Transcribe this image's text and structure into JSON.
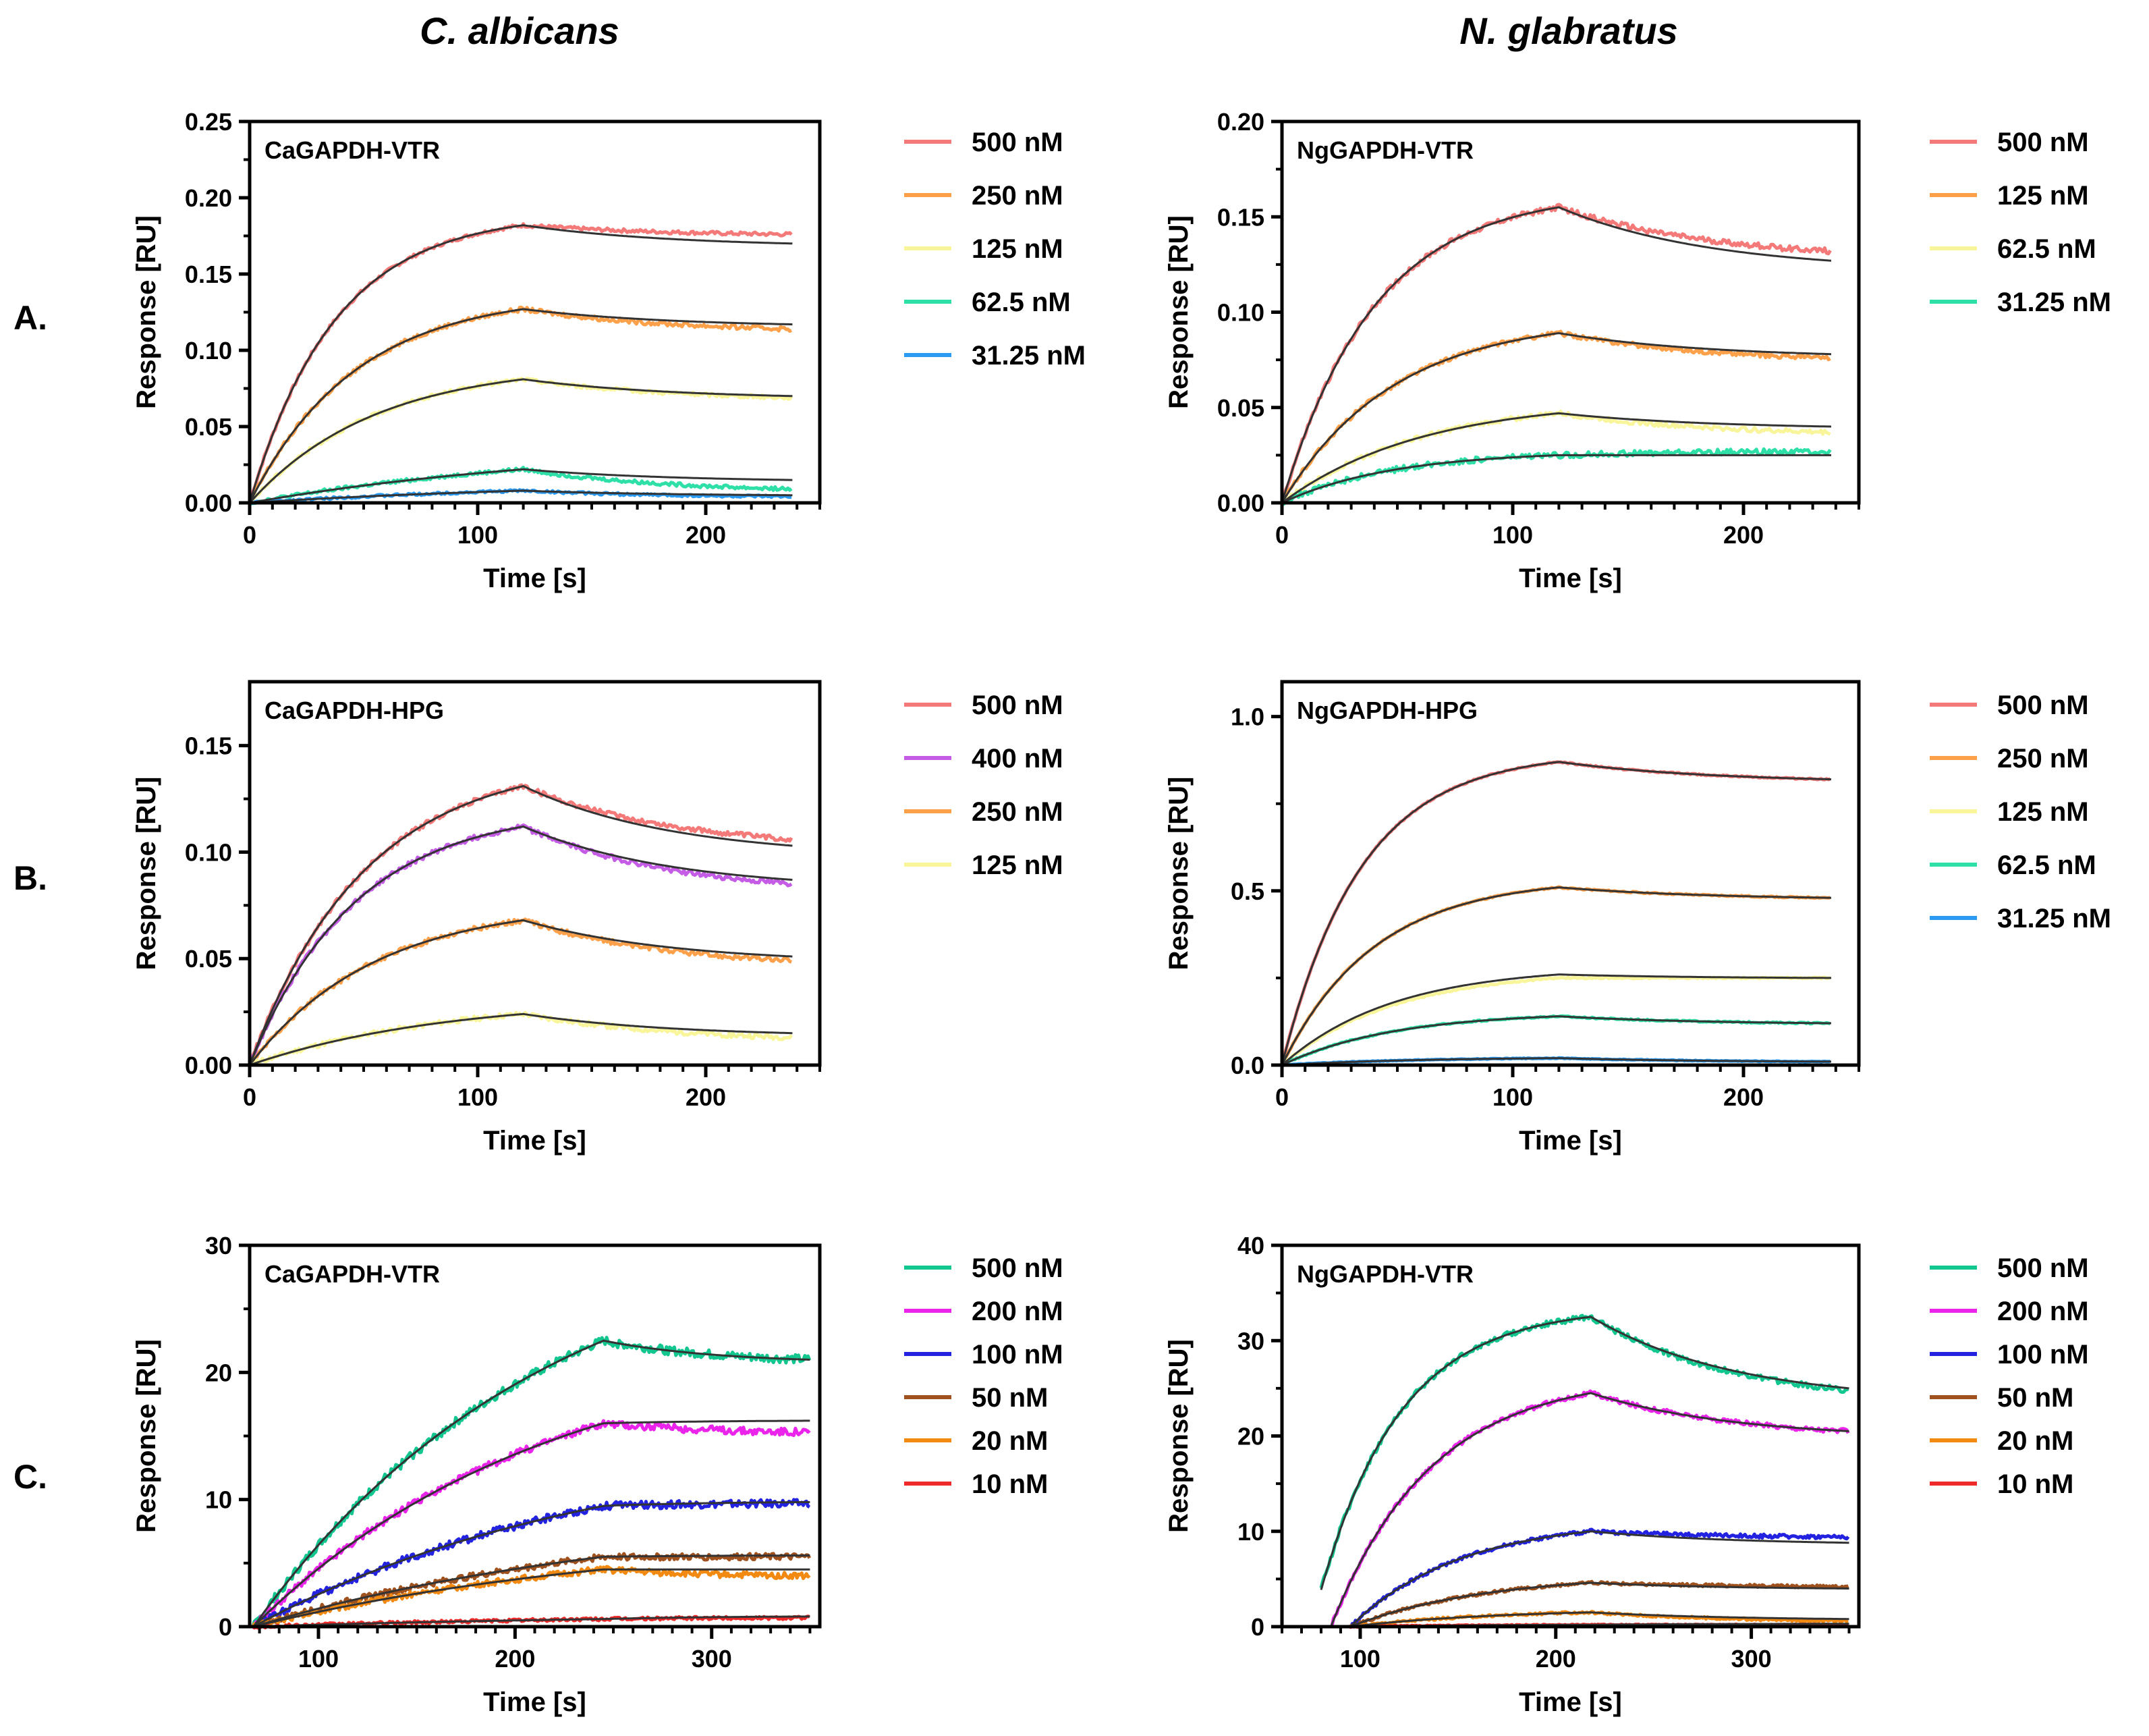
{
  "figure": {
    "columns": [
      "C. albicans",
      "N. glabratus"
    ],
    "rows": [
      "A.",
      "B.",
      "C."
    ]
  },
  "colors": {
    "red": "#f47a7a",
    "orange": "#fca04a",
    "yellow": "#f8f59a",
    "teal": "#2ee0a8",
    "blue": "#2a9af2",
    "purple": "#c45ce6",
    "fit": "#333333",
    "c_teal": "#12c690",
    "c_magenta": "#ea24ea",
    "c_blue": "#2222e0",
    "c_brown": "#a0521e",
    "c_orange": "#f28a12",
    "c_red": "#ee2a2a"
  },
  "chart_data": [
    {
      "id": "A-left",
      "type": "line",
      "title": "CaGAPDH-VTR",
      "xlabel": "Time [s]",
      "ylabel": "Response [RU]",
      "xlim": [
        0,
        250
      ],
      "ylim": [
        0,
        0.25
      ],
      "xticks": [
        0,
        100,
        200
      ],
      "xtick_labels": [
        "0",
        "100",
        "200"
      ],
      "yticks": [
        0,
        0.05,
        0.1,
        0.15,
        0.2,
        0.25
      ],
      "ytick_labels": [
        "0.00",
        "0.05",
        "0.10",
        "0.15",
        "0.20",
        "0.25"
      ],
      "model": {
        "t0": 0,
        "t_switch": 120,
        "t_end": 238
      },
      "series": [
        {
          "name": "500 nM",
          "color": "#f47a7a",
          "peak": 0.182,
          "end": 0.176,
          "fit_end": 0.17,
          "k": 3.2,
          "noise": 0.0012
        },
        {
          "name": "250 nM",
          "color": "#fca04a",
          "peak": 0.127,
          "end": 0.114,
          "fit_end": 0.117,
          "k": 2.6,
          "noise": 0.0015
        },
        {
          "name": "125 nM",
          "color": "#f8f59a",
          "peak": 0.081,
          "end": 0.069,
          "fit_end": 0.07,
          "k": 2.2,
          "noise": 0.0012
        },
        {
          "name": "62.5 nM",
          "color": "#2ee0a8",
          "peak": 0.022,
          "end": 0.009,
          "fit_end": 0.015,
          "k": 0.8,
          "noise": 0.0012
        },
        {
          "name": "31.25 nM",
          "color": "#2a9af2",
          "peak": 0.008,
          "end": 0.004,
          "fit_end": 0.005,
          "k": 0.8,
          "noise": 0.0008
        }
      ]
    },
    {
      "id": "A-right",
      "type": "line",
      "title": "NgGAPDH-VTR",
      "xlabel": "Time [s]",
      "ylabel": "Response [RU]",
      "xlim": [
        0,
        250
      ],
      "ylim": [
        0,
        0.2
      ],
      "xticks": [
        0,
        100,
        200
      ],
      "xtick_labels": [
        "0",
        "100",
        "200"
      ],
      "yticks": [
        0,
        0.05,
        0.1,
        0.15,
        0.2
      ],
      "ytick_labels": [
        "0.00",
        "0.05",
        "0.10",
        "0.15",
        "0.20"
      ],
      "model": {
        "t0": 0,
        "t_switch": 120,
        "t_end": 238
      },
      "series": [
        {
          "name": "500 nM",
          "color": "#f47a7a",
          "peak": 0.155,
          "end": 0.132,
          "fit_end": 0.127,
          "k": 3.0,
          "noise": 0.0015
        },
        {
          "name": "125 nM",
          "color": "#fca04a",
          "peak": 0.089,
          "end": 0.076,
          "fit_end": 0.078,
          "k": 2.5,
          "noise": 0.0012
        },
        {
          "name": "62.5 nM",
          "color": "#f8f59a",
          "peak": 0.047,
          "end": 0.037,
          "fit_end": 0.04,
          "k": 2.0,
          "noise": 0.0012
        },
        {
          "name": "31.25 nM",
          "color": "#2ee0a8",
          "peak": 0.025,
          "end": 0.027,
          "fit_end": 0.025,
          "k": 2.5,
          "noise": 0.0015
        }
      ]
    },
    {
      "id": "B-left",
      "type": "line",
      "title": "CaGAPDH-HPG",
      "xlabel": "Time [s]",
      "ylabel": "Response [RU]",
      "xlim": [
        0,
        250
      ],
      "ylim": [
        0,
        0.18
      ],
      "xticks": [
        0,
        100,
        200
      ],
      "xtick_labels": [
        "0",
        "100",
        "200"
      ],
      "yticks": [
        0,
        0.05,
        0.1,
        0.15
      ],
      "ytick_labels": [
        "0.00",
        "0.05",
        "0.10",
        "0.15"
      ],
      "model": {
        "t0": 0,
        "t_switch": 120,
        "t_end": 238
      },
      "series": [
        {
          "name": "500 nM",
          "color": "#f47a7a",
          "peak": 0.131,
          "end": 0.106,
          "fit_end": 0.103,
          "k": 2.4,
          "noise": 0.0012
        },
        {
          "name": "400 nM",
          "color": "#c45ce6",
          "peak": 0.112,
          "end": 0.085,
          "fit_end": 0.087,
          "k": 2.6,
          "noise": 0.0012
        },
        {
          "name": "250 nM",
          "color": "#fca04a",
          "peak": 0.068,
          "end": 0.049,
          "fit_end": 0.051,
          "k": 2.2,
          "noise": 0.0012
        },
        {
          "name": "125 nM",
          "color": "#f8f59a",
          "peak": 0.024,
          "end": 0.013,
          "fit_end": 0.015,
          "k": 1.4,
          "noise": 0.0012
        }
      ]
    },
    {
      "id": "B-right",
      "type": "line",
      "title": "NgGAPDH-HPG",
      "xlabel": "Time [s]",
      "ylabel": "Response [RU]",
      "xlim": [
        0,
        250
      ],
      "ylim": [
        0,
        1.1
      ],
      "xticks": [
        0,
        100,
        200
      ],
      "xtick_labels": [
        "0",
        "100",
        "200"
      ],
      "yticks": [
        0,
        0.5,
        1.0
      ],
      "ytick_labels": [
        "0.0",
        "0.5",
        "1.0"
      ],
      "model": {
        "t0": 0,
        "t_switch": 120,
        "t_end": 238
      },
      "series": [
        {
          "name": "500 nM",
          "color": "#f47a7a",
          "peak": 0.87,
          "end": 0.82,
          "fit_end": 0.82,
          "k": 3.5,
          "noise": 0.002
        },
        {
          "name": "250 nM",
          "color": "#fca04a",
          "peak": 0.51,
          "end": 0.48,
          "fit_end": 0.48,
          "k": 3.0,
          "noise": 0.002
        },
        {
          "name": "125 nM",
          "color": "#f8f59a",
          "peak": 0.25,
          "end": 0.25,
          "fit_end": 0.25,
          "k": 2.5,
          "noise": 0.002,
          "fit_peak": 0.26
        },
        {
          "name": "62.5 nM",
          "color": "#2ee0a8",
          "peak": 0.14,
          "end": 0.12,
          "fit_end": 0.12,
          "k": 2.5,
          "noise": 0.002
        },
        {
          "name": "31.25 nM",
          "color": "#2a9af2",
          "peak": 0.02,
          "end": 0.01,
          "fit_end": 0.01,
          "k": 2.0,
          "noise": 0.001
        }
      ]
    },
    {
      "id": "C-left",
      "type": "line",
      "title": "CaGAPDH-VTR",
      "xlabel": "Time [s]",
      "ylabel": "Response [RU]",
      "xlim": [
        65,
        355
      ],
      "ylim": [
        0,
        30
      ],
      "xticks": [
        100,
        200,
        300
      ],
      "xtick_labels": [
        "100",
        "200",
        "300"
      ],
      "yticks": [
        0,
        10,
        20,
        30
      ],
      "ytick_labels": [
        "0",
        "10",
        "20",
        "30"
      ],
      "model": {
        "t0": 67,
        "t_switch": 245,
        "t_end": 350
      },
      "series": [
        {
          "name": "500 nM",
          "color": "#12c690",
          "peak": 22.5,
          "end": 21.0,
          "fit_end": 21.0,
          "k": 1.2,
          "noise": 0.35
        },
        {
          "name": "200 nM",
          "color": "#ea24ea",
          "peak": 16.0,
          "end": 15.3,
          "fit_end": 16.2,
          "k": 1.2,
          "noise": 0.3
        },
        {
          "name": "100 nM",
          "color": "#2222e0",
          "peak": 9.5,
          "end": 9.7,
          "fit_end": 9.8,
          "k": 1.0,
          "noise": 0.3
        },
        {
          "name": "50 nM",
          "color": "#a0521e",
          "peak": 5.5,
          "end": 5.5,
          "fit_end": 5.6,
          "k": 0.9,
          "noise": 0.25
        },
        {
          "name": "20 nM",
          "color": "#f28a12",
          "peak": 4.5,
          "end": 4.0,
          "fit_end": 4.5,
          "k": 0.9,
          "noise": 0.25
        },
        {
          "name": "10 nM",
          "color": "#ee2a2a",
          "peak": 0.6,
          "end": 0.7,
          "fit_end": 0.8,
          "k": 0.8,
          "noise": 0.12
        }
      ]
    },
    {
      "id": "C-right",
      "type": "line",
      "title": "NgGAPDH-VTR",
      "xlabel": "Time [s]",
      "ylabel": "Response [RU]",
      "xlim": [
        60,
        355
      ],
      "ylim": [
        0,
        40
      ],
      "xticks": [
        100,
        200,
        300
      ],
      "xtick_labels": [
        "100",
        "200",
        "300"
      ],
      "yticks": [
        0,
        10,
        20,
        30,
        40
      ],
      "ytick_labels": [
        "0",
        "10",
        "20",
        "30",
        "40"
      ],
      "model": {
        "t0": 85,
        "t_switch": 218,
        "t_end": 350
      },
      "series": [
        {
          "name": "500 nM",
          "color": "#12c690",
          "peak": 32.5,
          "end": 24.8,
          "fit_end": 25.0,
          "k": 3.5,
          "noise": 0.3,
          "start": 75
        },
        {
          "name": "200 nM",
          "color": "#ea24ea",
          "peak": 24.5,
          "end": 20.5,
          "fit_end": 20.5,
          "k": 2.6,
          "noise": 0.25,
          "start": 85
        },
        {
          "name": "100 nM",
          "color": "#2222e0",
          "peak": 10.0,
          "end": 9.4,
          "fit_end": 8.8,
          "k": 2.2,
          "noise": 0.2,
          "start": 95
        },
        {
          "name": "50 nM",
          "color": "#a0521e",
          "peak": 4.6,
          "end": 4.2,
          "fit_end": 4.0,
          "k": 1.8,
          "noise": 0.15,
          "start": 95
        },
        {
          "name": "20 nM",
          "color": "#f28a12",
          "peak": 1.5,
          "end": 0.6,
          "fit_end": 0.8,
          "k": 1.6,
          "noise": 0.12,
          "start": 95
        },
        {
          "name": "10 nM",
          "color": "#ee2a2a",
          "peak": 0.2,
          "end": 0.2,
          "fit_end": 0.3,
          "k": 1.6,
          "noise": 0.05,
          "start": 95
        }
      ]
    }
  ]
}
